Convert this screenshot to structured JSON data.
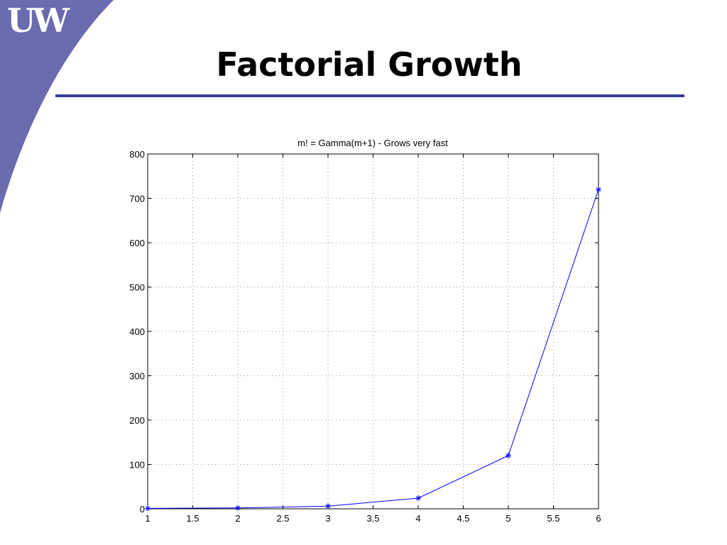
{
  "slide": {
    "logo_text": "UW",
    "title": "Factorial Growth"
  },
  "colors": {
    "accent": "#6b6bb0",
    "rule": "#3b3b98",
    "series": "#0000ff"
  },
  "chart_data": {
    "type": "line",
    "title": "m! = Gamma(m+1) - Grows very fast",
    "xlabel": "",
    "ylabel": "",
    "xlim": [
      1,
      6
    ],
    "ylim": [
      0,
      800
    ],
    "x_ticks": [
      1,
      1.5,
      2,
      2.5,
      3,
      3.5,
      4,
      4.5,
      5,
      5.5,
      6
    ],
    "y_ticks": [
      0,
      100,
      200,
      300,
      400,
      500,
      600,
      700,
      800
    ],
    "grid": true,
    "marker": "asterisk",
    "series": [
      {
        "x": [
          1,
          2,
          3,
          4,
          5,
          6
        ],
        "values": [
          1,
          2,
          6,
          24,
          120,
          720
        ]
      }
    ]
  }
}
